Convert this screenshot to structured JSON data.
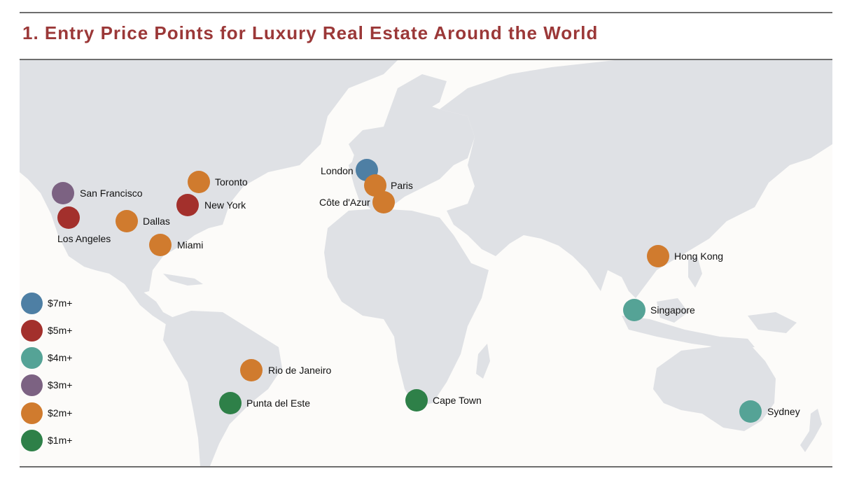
{
  "title": "1. Entry Price Points for Luxury Real Estate Around the World",
  "colors": {
    "title": "#9b3838",
    "land": "#dfe1e5",
    "background": "#fcfbf9",
    "rule": "#6e6e6e"
  },
  "legend": [
    {
      "label": "$7m+",
      "color": "#4e7fa4"
    },
    {
      "label": "$5m+",
      "color": "#a3302c"
    },
    {
      "label": "$4m+",
      "color": "#55a396"
    },
    {
      "label": "$3m+",
      "color": "#7c6282"
    },
    {
      "label": "$2m+",
      "color": "#d07b2e"
    },
    {
      "label": "$1m+",
      "color": "#2e8048"
    }
  ],
  "cities": [
    {
      "name": "San Francisco",
      "tier": "$3m+"
    },
    {
      "name": "Los Angeles",
      "tier": "$5m+"
    },
    {
      "name": "Dallas",
      "tier": "$2m+"
    },
    {
      "name": "Toronto",
      "tier": "$2m+"
    },
    {
      "name": "New York",
      "tier": "$5m+"
    },
    {
      "name": "Miami",
      "tier": "$2m+"
    },
    {
      "name": "London",
      "tier": "$7m+"
    },
    {
      "name": "Paris",
      "tier": "$2m+"
    },
    {
      "name": "Côte d'Azur",
      "tier": "$2m+"
    },
    {
      "name": "Hong Kong",
      "tier": "$2m+"
    },
    {
      "name": "Singapore",
      "tier": "$4m+"
    },
    {
      "name": "Rio de Janeiro",
      "tier": "$2m+"
    },
    {
      "name": "Punta del Este",
      "tier": "$1m+"
    },
    {
      "name": "Cape Town",
      "tier": "$1m+"
    },
    {
      "name": "Sydney",
      "tier": "$4m+"
    }
  ]
}
